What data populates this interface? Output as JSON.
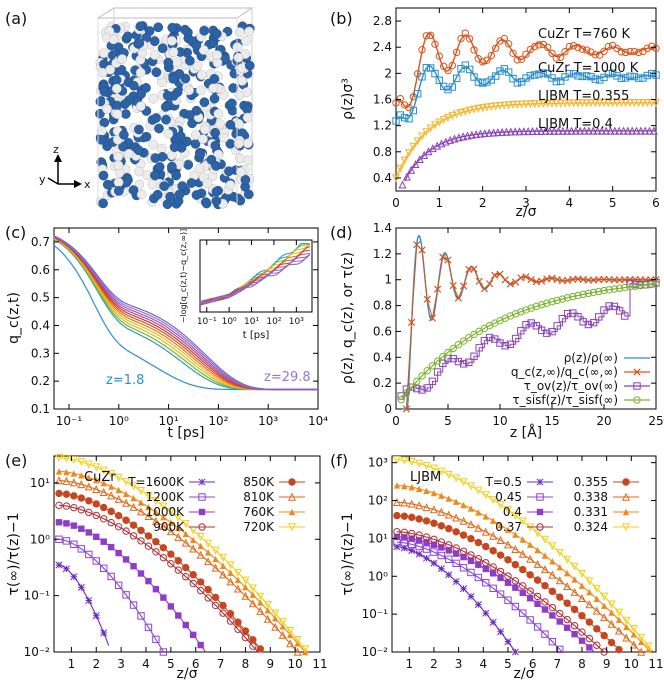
{
  "colors": {
    "cuzr_760": "#d9541a",
    "cuzr_1000": "#2a8fcf",
    "ljbm_0355": "#f4b52a",
    "ljbm_04": "#8a44b8",
    "rho_line": "#2a8fcf",
    "qc_ratio": "#d9541a",
    "tau_ov": "#8a44b8",
    "tau_sisf": "#7ab52e",
    "atom_blue": "#2d63a6",
    "atom_white": "#ececec"
  },
  "panel_a": {
    "label": "(a)",
    "axes": {
      "z": "z",
      "y": "y",
      "x": "x"
    }
  },
  "chart_data": [
    {
      "id": "b",
      "panel_label": "(b)",
      "type": "line",
      "xlabel": "z/σ",
      "ylabel": "ρ(z)σ³",
      "xlim": [
        0,
        6
      ],
      "ylim": [
        0.2,
        3.0
      ],
      "xticks": [
        "0",
        "1",
        "2",
        "3",
        "4",
        "5",
        "6"
      ],
      "yticks": [
        "0.4",
        "0.8",
        "1.2",
        "1.6",
        "2",
        "2.4",
        "2.8"
      ],
      "series": [
        {
          "name": "CuZr T=760 K",
          "color": "#d9541a",
          "marker": "circle"
        },
        {
          "name": "CuZr T=1000 K",
          "color": "#2a8fcf",
          "marker": "square"
        },
        {
          "name": "LJBM T=0.355",
          "color": "#f4b52a",
          "marker": "triangle-down"
        },
        {
          "name": "LJBM T=0.4",
          "color": "#8a44b8",
          "marker": "triangle-up"
        }
      ]
    },
    {
      "id": "c",
      "panel_label": "(c)",
      "type": "line",
      "xlabel": "t [ps]",
      "ylabel": "q_c(z,t)",
      "xscale": "log",
      "xlim": [
        0.05,
        10000
      ],
      "ylim": [
        0.1,
        0.75
      ],
      "xticks": [
        "10⁻¹",
        "10⁰",
        "10¹",
        "10²",
        "10³",
        "10⁴"
      ],
      "yticks": [
        "0.1",
        "0.2",
        "0.3",
        "0.4",
        "0.5",
        "0.6",
        "0.7"
      ],
      "annotations": [
        "z=1.8",
        "z=29.8"
      ],
      "inset": {
        "ylabel": "−log[q_c(z,t)−q_c(z,∞)]",
        "xlabel": "t [ps]",
        "xticks": [
          "10⁻¹",
          "10⁰",
          "10¹",
          "10²",
          "10³"
        ]
      }
    },
    {
      "id": "d",
      "panel_label": "(d)",
      "type": "line",
      "xlabel": "z [Å]",
      "ylabel": "ρ(z), q_c(z), or τ(z)",
      "xlim": [
        0,
        25
      ],
      "ylim": [
        0,
        1.4
      ],
      "xticks": [
        "0",
        "5",
        "10",
        "15",
        "20",
        "25"
      ],
      "yticks": [
        "0",
        "0.2",
        "0.4",
        "0.6",
        "0.8",
        "1",
        "1.2",
        "1.4"
      ],
      "series": [
        {
          "name": "ρ(z)/ρ(∞)",
          "color": "#2a8fcf",
          "marker": "line"
        },
        {
          "name": "q_c(z,∞)/q_c(∞,∞)",
          "color": "#d9541a",
          "marker": "x"
        },
        {
          "name": "τ_ov(z)/τ_ov(∞)",
          "color": "#8a44b8",
          "marker": "square"
        },
        {
          "name": "τ_sisf(z)/τ_sisf(∞)",
          "color": "#7ab52e",
          "marker": "circle"
        }
      ]
    },
    {
      "id": "e",
      "panel_label": "(e)",
      "type": "line",
      "title": "CuZr",
      "xlabel": "z/σ",
      "ylabel": "τ(∞)/τ(z)−1",
      "yscale": "log",
      "xlim": [
        0.3,
        11
      ],
      "ylim": [
        0.01,
        30
      ],
      "xticks": [
        "1",
        "2",
        "3",
        "4",
        "5",
        "6",
        "7",
        "8",
        "9",
        "10",
        "11"
      ],
      "yticks": [
        "10⁻²",
        "10⁻¹",
        "10⁰",
        "10¹"
      ],
      "series": [
        {
          "name": "T=1600K",
          "color": "#6a2cc0",
          "marker": "star",
          "end": 2.6
        },
        {
          "name": "1200K",
          "color": "#8a44d8",
          "marker": "square-open",
          "end": 4.7
        },
        {
          "name": "1000K",
          "color": "#8f3cc8",
          "marker": "square",
          "end": 6.4
        },
        {
          "name": "900K",
          "color": "#b0303a",
          "marker": "circle-open",
          "end": 8.5
        },
        {
          "name": "850K",
          "color": "#c8461e",
          "marker": "circle",
          "end": 8.7
        },
        {
          "name": "810K",
          "color": "#e06a1a",
          "marker": "triangle-up-open",
          "end": 10.1
        },
        {
          "name": "760K",
          "color": "#ee8a1a",
          "marker": "triangle-up",
          "end": 10.4
        },
        {
          "name": "720K",
          "color": "#f4cf1a",
          "marker": "triangle-down-open",
          "end": 10.5
        }
      ]
    },
    {
      "id": "f",
      "panel_label": "(f)",
      "type": "line",
      "title": "LJBM",
      "xlabel": "z/σ",
      "ylabel": "τ(∞)/τ(z)−1",
      "yscale": "log",
      "xlim": [
        0.3,
        11
      ],
      "ylim": [
        0.01,
        1500
      ],
      "xticks": [
        "1",
        "2",
        "3",
        "4",
        "5",
        "6",
        "7",
        "8",
        "9",
        "10",
        "11"
      ],
      "yticks": [
        "10⁻²",
        "10⁻¹",
        "10⁰",
        "10¹",
        "10²",
        "10³"
      ],
      "series": [
        {
          "name": "T=0.5",
          "color": "#6a2cc0",
          "marker": "star",
          "end": 5.3
        },
        {
          "name": "0.45",
          "color": "#8a44d8",
          "marker": "square-open",
          "end": 7.2
        },
        {
          "name": "0.4",
          "color": "#8f3cc8",
          "marker": "square",
          "end": 8.5
        },
        {
          "name": "0.37",
          "color": "#b0303a",
          "marker": "circle-open",
          "end": 8.9
        },
        {
          "name": "0.355",
          "color": "#c8461e",
          "marker": "circle",
          "end": 9.6
        },
        {
          "name": "0.338",
          "color": "#e06a1a",
          "marker": "triangle-up-open",
          "end": 10.4
        },
        {
          "name": "0.331",
          "color": "#ee8a1a",
          "marker": "triangle-up",
          "end": 10.8
        },
        {
          "name": "0.324",
          "color": "#f4cf1a",
          "marker": "triangle-down-open",
          "end": 10.9
        }
      ]
    }
  ]
}
